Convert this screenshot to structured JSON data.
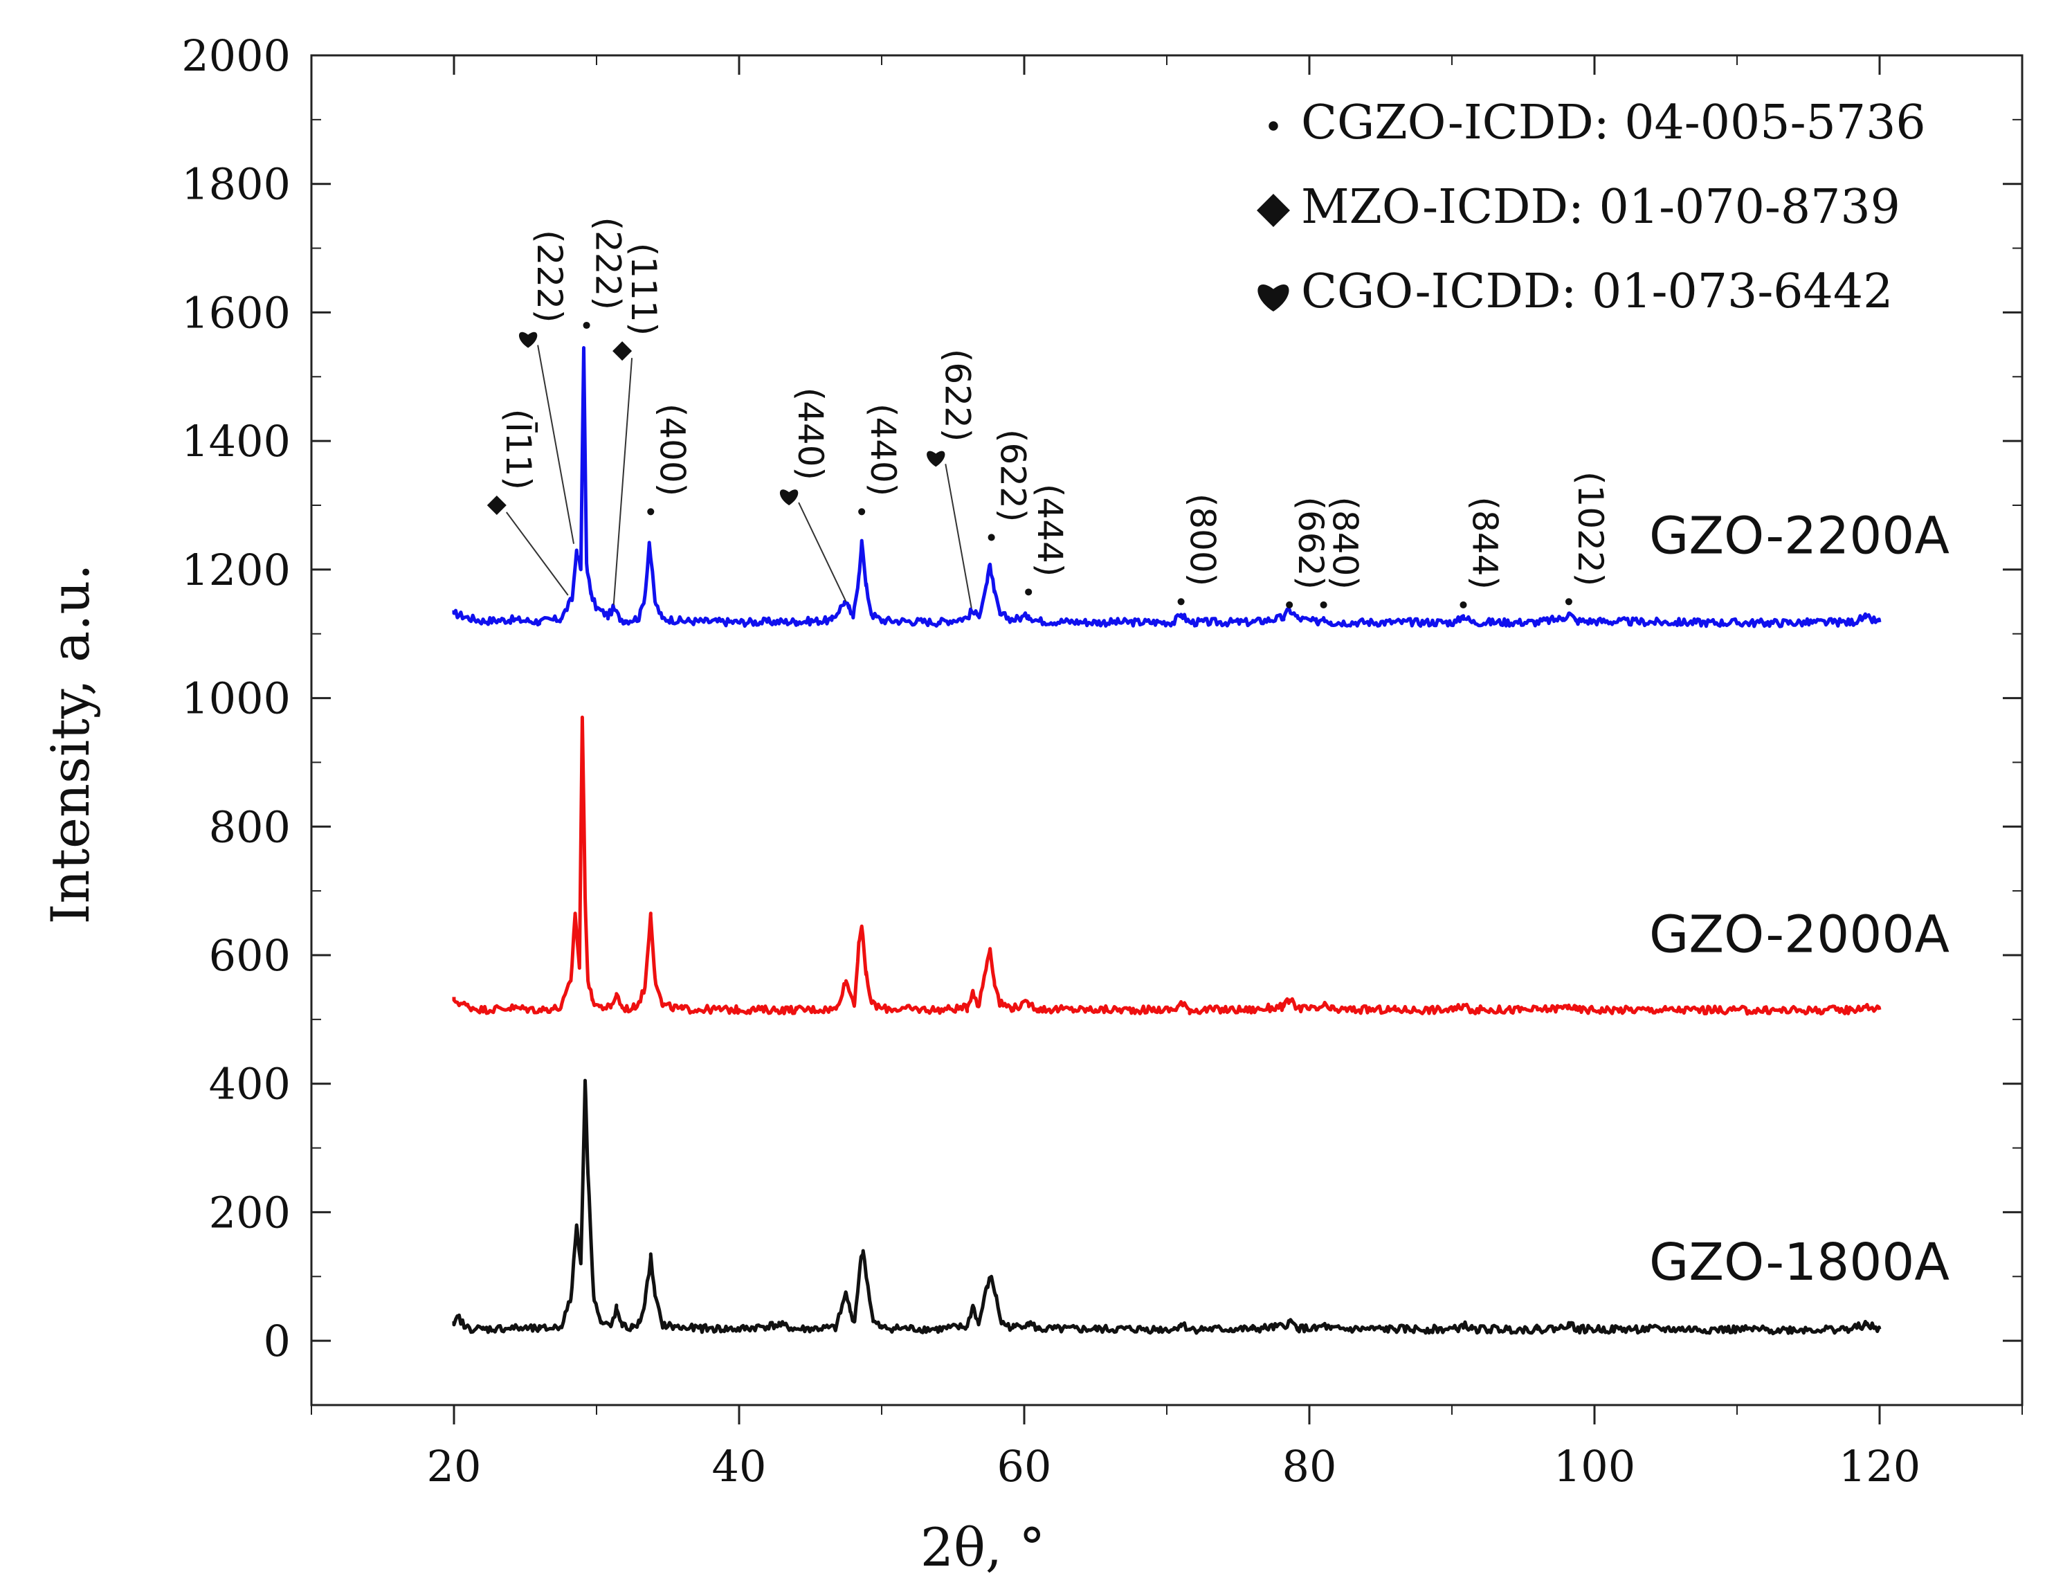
{
  "chart_data": {
    "type": "line",
    "title": "",
    "xlabel": "2θ, °",
    "ylabel": "Intensity, a.u.",
    "xlim": [
      10,
      130
    ],
    "ylim": [
      -100,
      2000
    ],
    "xticks": [
      20,
      40,
      60,
      80,
      100,
      120
    ],
    "yticks": [
      0,
      200,
      400,
      600,
      800,
      1000,
      1200,
      1400,
      1600,
      1800,
      2000
    ],
    "x_tick_labels": [
      "20",
      "40",
      "60",
      "80",
      "100",
      "120"
    ],
    "y_tick_labels": [
      "0",
      "200",
      "400",
      "600",
      "800",
      "1000",
      "1200",
      "1400",
      "1600",
      "1800",
      "2000"
    ],
    "legend_position": "top-right",
    "legend": [
      {
        "marker": "dot",
        "label": "CGZO-ICDD: 04-005-5736"
      },
      {
        "marker": "diamond",
        "label": "MZO-ICDD: 01-070-8739"
      },
      {
        "marker": "heart",
        "label": "CGO-ICDD: 01-073-6442"
      }
    ],
    "series": [
      {
        "name": "GZO-2200A",
        "color": "#1010ee",
        "baseline": 1118,
        "x": [
          20,
          21,
          22,
          24,
          26,
          27.5,
          28.3,
          28.6,
          28.9,
          29.1,
          29.3,
          29.6,
          30,
          30.8,
          31.2,
          31.6,
          32,
          33,
          33.4,
          33.7,
          34.1,
          34.6,
          36,
          40,
          44,
          46.5,
          47.4,
          47.7,
          48.0,
          48.4,
          48.6,
          48.9,
          49.3,
          50,
          54,
          56.0,
          56.3,
          56.8,
          57.4,
          57.6,
          57.9,
          58.3,
          59.2,
          60.3,
          61,
          65,
          70.5,
          71,
          71.6,
          76,
          78.2,
          78.6,
          79.2,
          80.5,
          81,
          81.5,
          86,
          90.3,
          90.8,
          91.4,
          96,
          97.8,
          98.2,
          98.7,
          105,
          112,
          118,
          119,
          120
        ],
        "y": [
          1132,
          1125,
          1120,
          1122,
          1119,
          1123,
          1155,
          1230,
          1200,
          1545,
          1210,
          1162,
          1140,
          1128,
          1140,
          1125,
          1120,
          1125,
          1160,
          1242,
          1150,
          1124,
          1120,
          1118,
          1119,
          1121,
          1150,
          1140,
          1125,
          1190,
          1245,
          1175,
          1130,
          1121,
          1118,
          1125,
          1135,
          1127,
          1180,
          1208,
          1165,
          1130,
          1122,
          1128,
          1120,
          1118,
          1118,
          1130,
          1118,
          1118,
          1125,
          1138,
          1124,
          1118,
          1125,
          1118,
          1118,
          1118,
          1128,
          1118,
          1118,
          1124,
          1132,
          1120,
          1118,
          1117,
          1118,
          1125,
          1118
        ]
      },
      {
        "name": "GZO-2000A",
        "color": "#ee1010",
        "baseline": 515,
        "x": [
          20,
          21,
          22,
          24,
          26,
          27.5,
          28.2,
          28.5,
          28.8,
          29.0,
          29.2,
          29.4,
          29.7,
          30.2,
          31.0,
          31.4,
          31.8,
          32.5,
          33.0,
          33.4,
          33.8,
          34.1,
          34.6,
          36,
          40,
          44,
          46.8,
          47.5,
          47.8,
          48.1,
          48.4,
          48.6,
          48.9,
          49.3,
          50,
          54,
          56.0,
          56.4,
          56.8,
          57.4,
          57.6,
          57.9,
          58.3,
          59.2,
          60.3,
          61,
          65,
          70.5,
          71,
          71.6,
          76,
          78.2,
          78.6,
          79.2,
          80.5,
          81,
          81.5,
          86,
          90.3,
          90.8,
          91.4,
          96,
          97.8,
          98.2,
          98.7,
          105,
          112,
          118,
          119,
          120
        ],
        "y": [
          530,
          520,
          515,
          518,
          515,
          518,
          560,
          665,
          580,
          970,
          690,
          560,
          530,
          520,
          518,
          540,
          518,
          516,
          528,
          550,
          665,
          565,
          522,
          516,
          515,
          515,
          516,
          560,
          540,
          525,
          620,
          645,
          570,
          525,
          517,
          515,
          518,
          545,
          520,
          590,
          610,
          560,
          525,
          518,
          525,
          516,
          515,
          515,
          525,
          515,
          515,
          520,
          530,
          518,
          515,
          522,
          515,
          515,
          515,
          522,
          515,
          515,
          518,
          522,
          515,
          515,
          514,
          515,
          520,
          515
        ]
      },
      {
        "name": "GZO-1800A",
        "color": "#111111",
        "baseline": 18,
        "x": [
          20,
          20.3,
          20.8,
          22,
          24,
          26,
          27.5,
          28.2,
          28.6,
          28.9,
          29.2,
          29.4,
          29.8,
          30.3,
          31.0,
          31.4,
          31.8,
          32.5,
          33.0,
          33.4,
          33.8,
          34.1,
          34.6,
          36,
          40,
          42.8,
          44,
          46.8,
          47.5,
          47.8,
          48.1,
          48.5,
          48.7,
          49.0,
          49.4,
          50,
          54,
          56.0,
          56.4,
          56.8,
          57.4,
          57.7,
          58.0,
          58.4,
          59.2,
          60.3,
          61,
          65,
          70.5,
          71,
          71.6,
          76,
          78.2,
          78.6,
          79.2,
          80.5,
          81,
          81.5,
          86,
          90.3,
          90.8,
          91.4,
          96,
          97.8,
          98.2,
          98.7,
          105,
          112,
          118,
          119,
          120
        ],
        "y": [
          25,
          38,
          20,
          18,
          20,
          18,
          22,
          65,
          180,
          120,
          405,
          260,
          70,
          28,
          22,
          50,
          22,
          20,
          28,
          60,
          130,
          70,
          25,
          20,
          18,
          25,
          18,
          20,
          75,
          45,
          30,
          120,
          140,
          90,
          30,
          20,
          18,
          22,
          55,
          25,
          85,
          100,
          70,
          28,
          20,
          28,
          18,
          18,
          18,
          26,
          18,
          18,
          22,
          30,
          20,
          18,
          24,
          18,
          18,
          18,
          25,
          18,
          18,
          20,
          28,
          18,
          18,
          17,
          18,
          25,
          18
        ]
      }
    ],
    "series_labels": [
      {
        "text": "GZO-2200A",
        "x": 110,
        "y": 1225
      },
      {
        "text": "GZO-2000A",
        "x": 110,
        "y": 605
      },
      {
        "text": "GZO-1800A",
        "x": 110,
        "y": 95
      }
    ],
    "annotations": [
      {
        "label": "(Ī11)",
        "marker": "diamond",
        "x": 23.0,
        "y": 1300,
        "target_x": 28.0,
        "target_y": 1160
      },
      {
        "label": "(222)",
        "marker": "heart",
        "x": 25.2,
        "y": 1560,
        "target_x": 28.4,
        "target_y": 1240
      },
      {
        "label": "(222)",
        "marker": "dot",
        "x": 29.3,
        "y": 1580,
        "target_x": null,
        "target_y": null
      },
      {
        "label": "(111)",
        "marker": "diamond",
        "x": 31.8,
        "y": 1540,
        "target_x": 31.2,
        "target_y": 1145
      },
      {
        "label": "(400)",
        "marker": "dot",
        "x": 33.8,
        "y": 1290,
        "target_x": null,
        "target_y": null
      },
      {
        "label": "(440)",
        "marker": "heart",
        "x": 43.5,
        "y": 1315,
        "target_x": 47.5,
        "target_y": 1150
      },
      {
        "label": "(440)",
        "marker": "dot",
        "x": 48.6,
        "y": 1290,
        "target_x": null,
        "target_y": null
      },
      {
        "label": "(622)",
        "marker": "heart",
        "x": 53.8,
        "y": 1375,
        "target_x": 56.3,
        "target_y": 1140
      },
      {
        "label": "(622)",
        "marker": "dot",
        "x": 57.7,
        "y": 1250,
        "target_x": null,
        "target_y": null
      },
      {
        "label": "(444)",
        "marker": "dot",
        "x": 60.3,
        "y": 1165,
        "target_x": null,
        "target_y": null
      },
      {
        "label": "(800)",
        "marker": "dot",
        "x": 71.0,
        "y": 1150,
        "target_x": null,
        "target_y": null
      },
      {
        "label": "(662)",
        "marker": "dot",
        "x": 78.6,
        "y": 1145,
        "target_x": null,
        "target_y": null
      },
      {
        "label": "(840)",
        "marker": "dot",
        "x": 81.0,
        "y": 1145,
        "target_x": null,
        "target_y": null
      },
      {
        "label": "(844)",
        "marker": "dot",
        "x": 90.8,
        "y": 1145,
        "target_x": null,
        "target_y": null
      },
      {
        "label": "(1022)",
        "marker": "dot",
        "x": 98.2,
        "y": 1150,
        "target_x": null,
        "target_y": null
      }
    ]
  }
}
